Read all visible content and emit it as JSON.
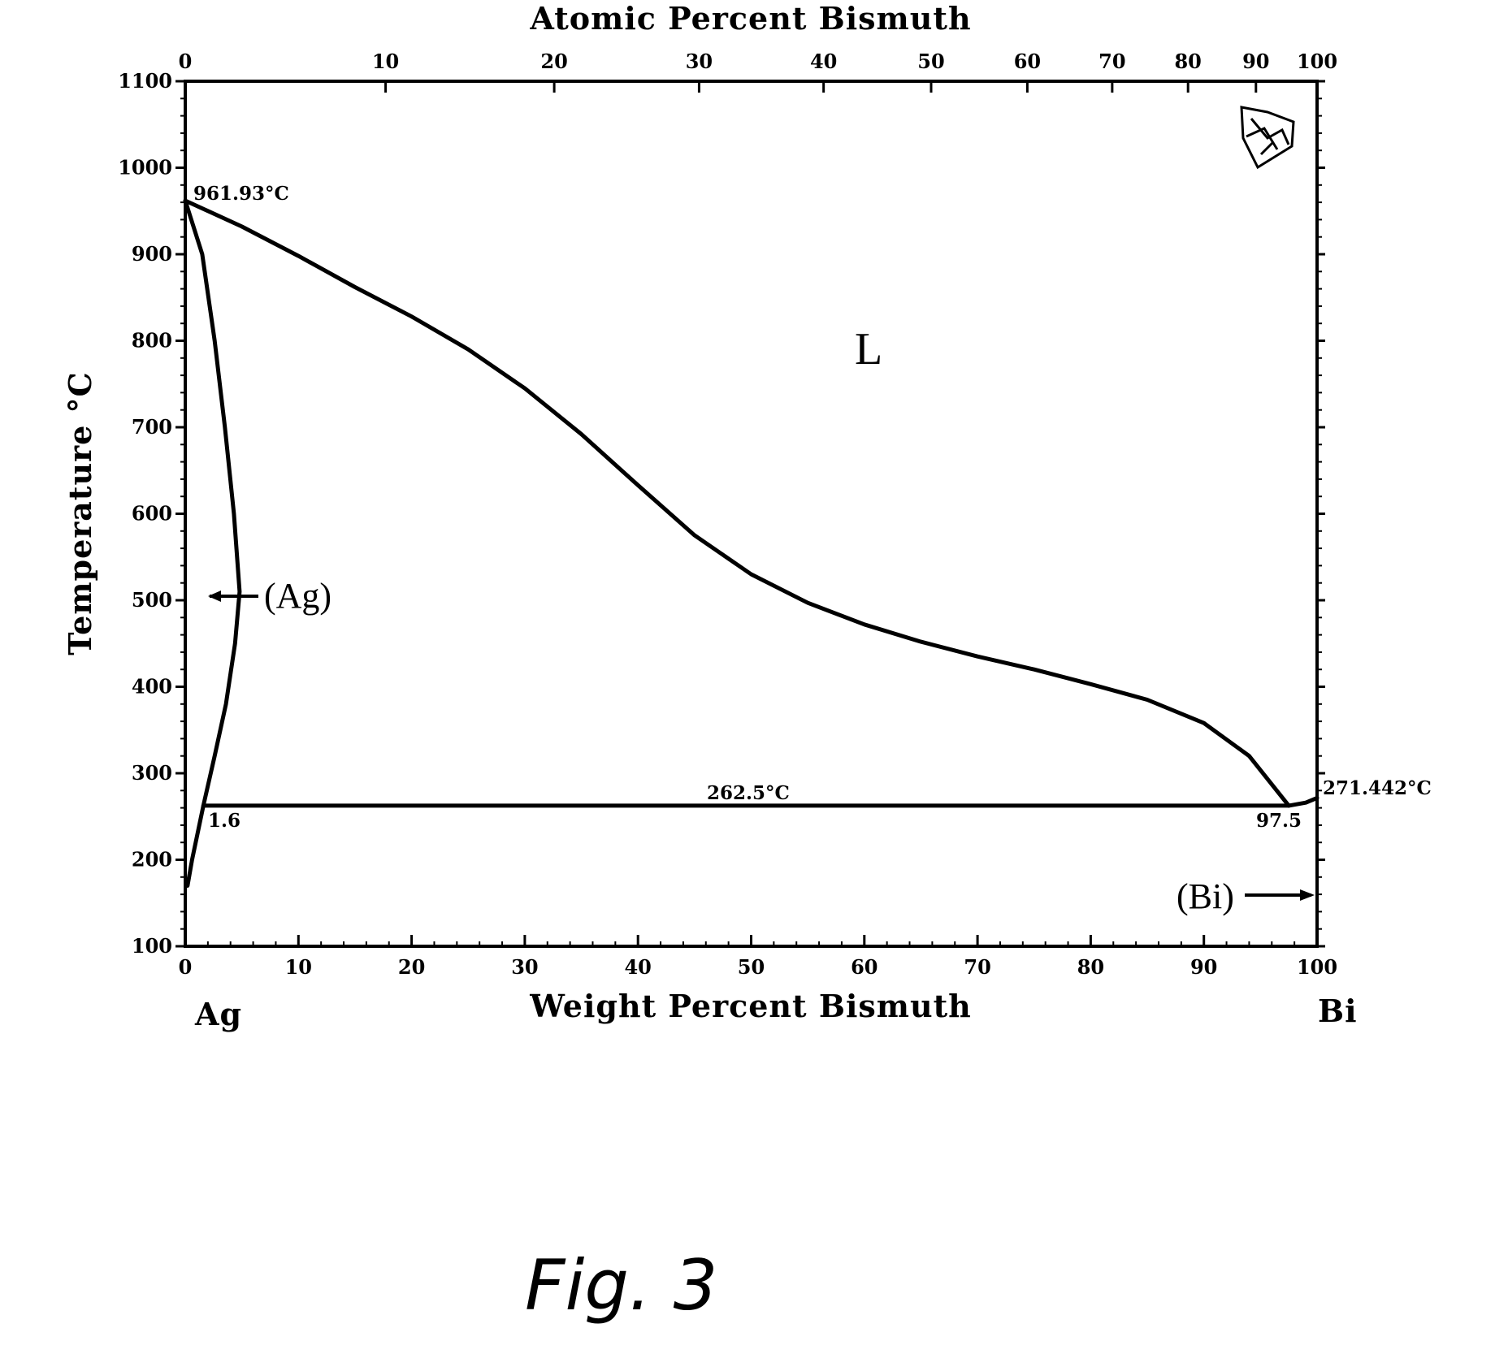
{
  "chart_data": {
    "type": "line",
    "title": "",
    "x_bottom_label": "Weight Percent Bismuth",
    "x_top_label": "Atomic Percent Bismuth",
    "ylabel": "Temperature °C",
    "xlim": [
      0,
      100
    ],
    "ylim": [
      100,
      1100
    ],
    "y_ticks": [
      "1100",
      "1000",
      "900",
      "800",
      "700",
      "600",
      "500",
      "400",
      "300",
      "200",
      "100"
    ],
    "x_bottom_ticks": [
      "0",
      "10",
      "20",
      "30",
      "40",
      "50",
      "60",
      "70",
      "80",
      "90",
      "100"
    ],
    "x_top_ticks": [
      {
        "label": "0",
        "wt": 0
      },
      {
        "label": "10",
        "wt": 17.7
      },
      {
        "label": "20",
        "wt": 32.6
      },
      {
        "label": "30",
        "wt": 45.4
      },
      {
        "label": "40",
        "wt": 56.4
      },
      {
        "label": "50",
        "wt": 65.9
      },
      {
        "label": "60",
        "wt": 74.4
      },
      {
        "label": "70",
        "wt": 81.9
      },
      {
        "label": "80",
        "wt": 88.6
      },
      {
        "label": "90",
        "wt": 94.6
      },
      {
        "label": "100",
        "wt": 100
      }
    ],
    "series": [
      {
        "values": [
          [
            0,
            961.93
          ],
          [
            5,
            932
          ],
          [
            10,
            898
          ],
          [
            15,
            862
          ],
          [
            20,
            828
          ],
          [
            25,
            790
          ],
          [
            30,
            745
          ],
          [
            35,
            692
          ],
          [
            40,
            633
          ],
          [
            45,
            575
          ],
          [
            50,
            530
          ],
          [
            55,
            497
          ],
          [
            60,
            472
          ],
          [
            65,
            452
          ],
          [
            70,
            435
          ],
          [
            75,
            420
          ],
          [
            80,
            403
          ],
          [
            85,
            385
          ],
          [
            90,
            358
          ],
          [
            94,
            320
          ],
          [
            97.5,
            262.5
          ]
        ]
      },
      {
        "values": [
          [
            0,
            961.93
          ],
          [
            1.5,
            900
          ],
          [
            2.6,
            800
          ],
          [
            3.5,
            700
          ],
          [
            4.3,
            600
          ],
          [
            4.8,
            510
          ],
          [
            4.4,
            450
          ],
          [
            3.6,
            380
          ],
          [
            2.6,
            320
          ],
          [
            1.6,
            262.5
          ],
          [
            0.6,
            200
          ],
          [
            0.2,
            170
          ]
        ]
      },
      {
        "values": [
          [
            1.6,
            262.5
          ],
          [
            97.5,
            262.5
          ]
        ]
      },
      {
        "values": [
          [
            97.5,
            262.5
          ],
          [
            99,
            266
          ],
          [
            100,
            271.442
          ]
        ]
      }
    ],
    "annotations": {
      "ag_melting": "961.93°C",
      "eutectic_temp": "262.5°C",
      "bi_melting": "271.442°C",
      "ag_solubility": "1.6",
      "eutectic_comp": "97.5",
      "liquid_region": "L",
      "ag_region": "(Ag)",
      "bi_region": "(Bi)",
      "left_element": "Ag",
      "right_element": "Bi"
    }
  },
  "caption": "Fig. 3"
}
